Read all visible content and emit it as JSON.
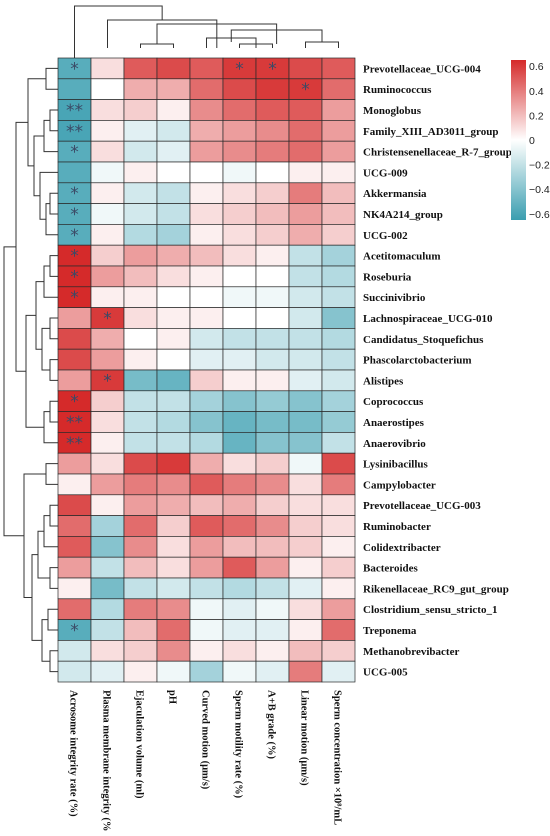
{
  "chart_data": {
    "type": "heatmap",
    "title": "",
    "rows": [
      "Prevotellaceae_UCG-004",
      "Ruminococcus",
      "Monoglobus",
      "Family_XIII_AD3011_group",
      "Christensenellaceae_R-7_group",
      "UCG-009",
      "Akkermansia",
      "NK4A214_group",
      "UCG-002",
      "Acetitomaculum",
      "Roseburia",
      "Succinivibrio",
      "Lachnospiraceae_UCG-010",
      "Candidatus_Stoquefichus",
      "Phascolarctobacterium",
      "Alistipes",
      "Coprococcus",
      "Anaerostipes",
      "Anaerovibrio",
      "Lysinibacillus",
      "Campylobacter",
      "Prevotellaceae_UCG-003",
      "Ruminobacter",
      "Colidextribacter",
      "Bacteroides",
      "Rikenellaceae_RC9_gut_group",
      "Clostridium_sensu_stricto_1",
      "Treponema",
      "Methanobrevibacter",
      "UCG-005"
    ],
    "columns": [
      "Acrosome integrity rate (%)",
      "Plasma membrane integrity (%)",
      "Ejaculation volume (ml)",
      "pH",
      "Curved motion (μm/s)",
      "Sperm motility rate (%)",
      "A+B grade (%)",
      "Linear motion (μm/s)",
      "Sperm concentration ×10⁸/mL"
    ],
    "values": [
      [
        -0.55,
        0.1,
        0.5,
        0.55,
        0.5,
        0.6,
        0.6,
        0.55,
        0.5
      ],
      [
        -0.55,
        0.0,
        0.25,
        0.25,
        0.45,
        0.55,
        0.6,
        0.6,
        0.45
      ],
      [
        -0.6,
        0.1,
        0.15,
        0.05,
        0.35,
        0.45,
        0.5,
        0.5,
        0.3
      ],
      [
        -0.6,
        0.05,
        -0.1,
        -0.15,
        0.25,
        0.3,
        0.35,
        0.45,
        0.3
      ],
      [
        -0.55,
        0.1,
        -0.15,
        -0.1,
        0.3,
        0.35,
        0.4,
        0.45,
        0.3
      ],
      [
        -0.55,
        -0.05,
        0.05,
        0.0,
        0.0,
        -0.05,
        0.0,
        0.05,
        0.05
      ],
      [
        -0.55,
        0.05,
        -0.15,
        -0.2,
        0.05,
        0.1,
        0.15,
        0.4,
        0.2
      ],
      [
        -0.55,
        -0.05,
        -0.15,
        -0.2,
        0.1,
        0.15,
        0.2,
        0.3,
        0.2
      ],
      [
        -0.55,
        0.05,
        -0.25,
        -0.3,
        0.05,
        0.1,
        0.15,
        0.25,
        0.15
      ],
      [
        0.65,
        0.15,
        0.3,
        0.25,
        0.2,
        0.1,
        0.05,
        -0.2,
        -0.3
      ],
      [
        0.65,
        0.3,
        0.2,
        0.1,
        0.05,
        0.0,
        0.0,
        -0.2,
        -0.25
      ],
      [
        0.65,
        0.05,
        0.05,
        0.0,
        0.0,
        -0.05,
        -0.05,
        -0.15,
        -0.2
      ],
      [
        0.3,
        0.6,
        0.1,
        0.05,
        0.05,
        0.0,
        0.0,
        -0.15,
        -0.4
      ],
      [
        0.55,
        0.25,
        0.0,
        0.05,
        -0.15,
        -0.2,
        -0.2,
        -0.2,
        -0.25
      ],
      [
        0.55,
        0.3,
        0.05,
        0.0,
        -0.1,
        -0.1,
        -0.15,
        -0.15,
        -0.2
      ],
      [
        0.3,
        0.6,
        -0.45,
        -0.5,
        0.15,
        0.05,
        0.05,
        -0.1,
        -0.15
      ],
      [
        0.65,
        0.15,
        -0.2,
        -0.2,
        -0.3,
        -0.4,
        -0.35,
        -0.4,
        -0.3
      ],
      [
        0.65,
        0.1,
        -0.2,
        -0.25,
        -0.4,
        -0.5,
        -0.45,
        -0.45,
        -0.35
      ],
      [
        0.65,
        0.05,
        -0.2,
        -0.2,
        -0.25,
        -0.5,
        -0.4,
        -0.4,
        -0.2
      ],
      [
        0.3,
        0.1,
        0.55,
        0.6,
        0.25,
        0.1,
        0.15,
        -0.05,
        0.55
      ],
      [
        0.05,
        0.3,
        0.4,
        0.35,
        0.5,
        0.4,
        0.35,
        0.1,
        0.4
      ],
      [
        0.55,
        0.05,
        0.3,
        0.25,
        0.2,
        0.25,
        0.15,
        0.1,
        0.1
      ],
      [
        0.45,
        -0.3,
        0.45,
        0.15,
        0.5,
        0.45,
        0.35,
        0.15,
        0.1
      ],
      [
        0.5,
        -0.4,
        0.35,
        0.1,
        0.3,
        0.2,
        0.2,
        0.15,
        0.05
      ],
      [
        0.3,
        -0.2,
        0.2,
        0.1,
        0.3,
        0.5,
        0.3,
        0.05,
        0.15
      ],
      [
        0.05,
        -0.45,
        -0.2,
        -0.15,
        -0.2,
        -0.25,
        -0.2,
        -0.1,
        0.05
      ],
      [
        0.45,
        -0.25,
        0.4,
        0.35,
        -0.05,
        -0.1,
        -0.05,
        0.1,
        0.3
      ],
      [
        -0.55,
        -0.2,
        0.2,
        0.45,
        -0.05,
        -0.1,
        -0.1,
        0.05,
        0.45
      ],
      [
        -0.15,
        0.1,
        0.15,
        0.35,
        0.05,
        0.1,
        0.05,
        0.2,
        0.15
      ],
      [
        -0.15,
        -0.1,
        0.05,
        -0.05,
        -0.3,
        -0.05,
        -0.1,
        0.4,
        -0.1
      ]
    ],
    "significance": [
      [
        {
          "r": 0,
          "c": 0,
          "s": "*"
        },
        {
          "r": 0,
          "c": 5,
          "s": "*"
        },
        {
          "r": 0,
          "c": 6,
          "s": "*"
        }
      ],
      [
        {
          "r": 1,
          "c": 7,
          "s": "*"
        }
      ],
      [
        {
          "r": 2,
          "c": 0,
          "s": "**"
        }
      ],
      [
        {
          "r": 3,
          "c": 0,
          "s": "**"
        }
      ],
      [
        {
          "r": 4,
          "c": 0,
          "s": "*"
        }
      ],
      [
        {
          "r": 6,
          "c": 0,
          "s": "*"
        }
      ],
      [
        {
          "r": 7,
          "c": 0,
          "s": "*"
        }
      ],
      [
        {
          "r": 8,
          "c": 0,
          "s": "*"
        }
      ],
      [
        {
          "r": 9,
          "c": 0,
          "s": "*"
        }
      ],
      [
        {
          "r": 10,
          "c": 0,
          "s": "*"
        }
      ],
      [
        {
          "r": 11,
          "c": 0,
          "s": "*"
        }
      ],
      [
        {
          "r": 12,
          "c": 1,
          "s": "*"
        }
      ],
      [
        {
          "r": 15,
          "c": 1,
          "s": "*"
        }
      ],
      [
        {
          "r": 16,
          "c": 0,
          "s": "*"
        }
      ],
      [
        {
          "r": 17,
          "c": 0,
          "s": "**"
        }
      ],
      [
        {
          "r": 18,
          "c": 0,
          "s": "**"
        }
      ],
      [
        {
          "r": 27,
          "c": 0,
          "s": "*"
        }
      ]
    ],
    "color_scale": {
      "min": -0.65,
      "max": 0.65,
      "low_color": "#3a9eb0",
      "mid_color": "#ffffff",
      "high_color": "#d52a2a",
      "ticks": [
        "0.6",
        "0.4",
        "0.2",
        "0",
        "−0.2",
        "−0.4",
        "−0.6"
      ],
      "tick_values": [
        0.6,
        0.4,
        0.2,
        0,
        -0.2,
        -0.4,
        -0.6
      ]
    },
    "legend_position": "top-right",
    "grid": true
  }
}
